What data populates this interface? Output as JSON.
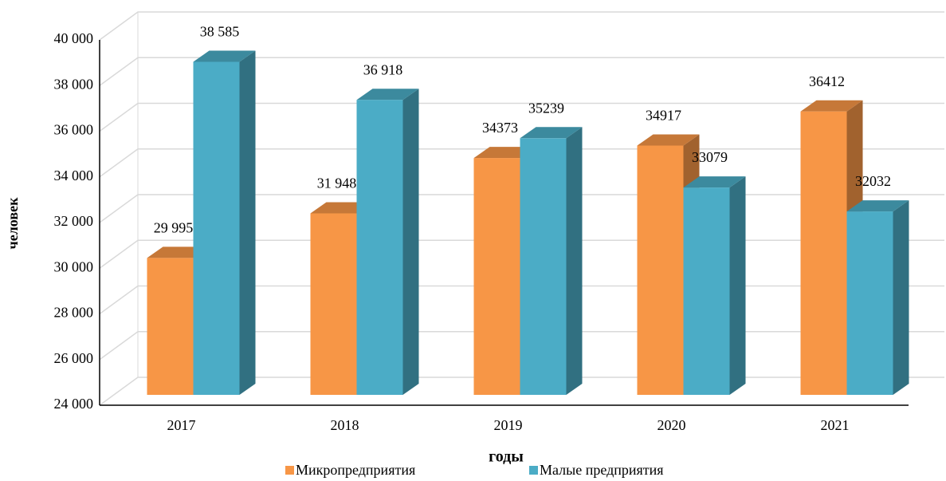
{
  "chart_data": {
    "type": "bar3d",
    "y_label": "человек",
    "x_label": "годы",
    "categories": [
      "2017",
      "2018",
      "2019",
      "2020",
      "2021"
    ],
    "series": [
      {
        "name": "Микропредприятия",
        "color": "#f79646",
        "values": [
          29995,
          31948,
          34373,
          34917,
          36412
        ],
        "value_labels": [
          "29 995",
          "31 948",
          "34373",
          "34917",
          "36412"
        ]
      },
      {
        "name": "Малые предприятия",
        "color": "#4bacc6",
        "values": [
          38585,
          36918,
          35239,
          33079,
          32032
        ],
        "value_labels": [
          "38 585",
          "36 918",
          "35239",
          "33079",
          "32032"
        ]
      }
    ],
    "ylim": [
      24000,
      40000
    ],
    "yticks": [
      {
        "value": 24000,
        "label": "24 000"
      },
      {
        "value": 26000,
        "label": "26 000"
      },
      {
        "value": 28000,
        "label": "28 000"
      },
      {
        "value": 30000,
        "label": "30 000"
      },
      {
        "value": 32000,
        "label": "32 000"
      },
      {
        "value": 34000,
        "label": "34 000"
      },
      {
        "value": 36000,
        "label": "36 000"
      },
      {
        "value": 38000,
        "label": "38 000"
      },
      {
        "value": 40000,
        "label": "40 000"
      }
    ],
    "grid": true,
    "legend": "bottom"
  }
}
